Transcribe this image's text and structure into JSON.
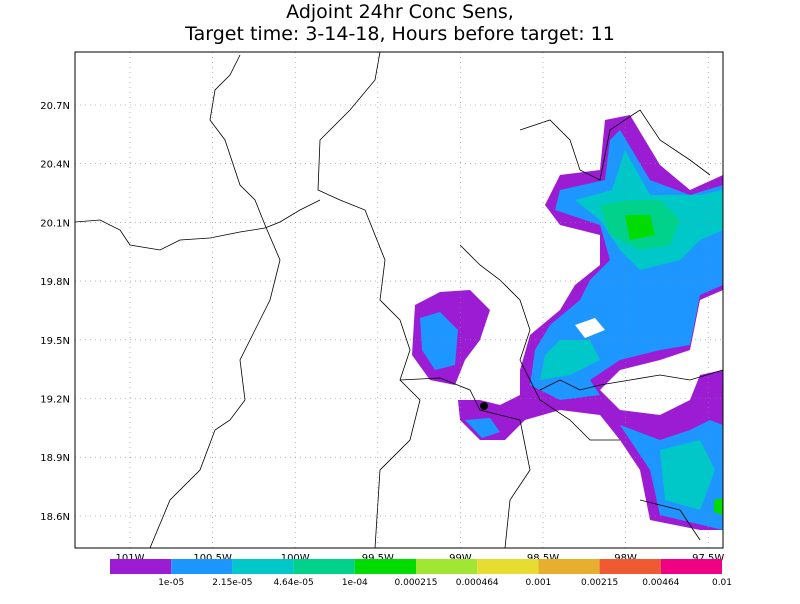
{
  "title": [
    "Adjoint 24hr Conc Sens,",
    "Target time: 3-14-18, Hours before target: 11"
  ],
  "map": {
    "y_labels": [
      "20.7N",
      "20.4N",
      "20.1N",
      "19.8N",
      "19.5N",
      "19.2N",
      "18.9N",
      "18.6N"
    ],
    "x_labels": [
      "101W",
      "100.5W",
      "100W",
      "99.5W",
      "99W",
      "98.5W",
      "98W",
      "97.5W"
    ]
  },
  "colorbar": {
    "labels": [
      "1e-05",
      "2.15e-05",
      "4.64e-05",
      "1e-04",
      "0.000215",
      "0.000464",
      "0.001",
      "0.00215",
      "0.00464",
      "0.01"
    ],
    "colors": [
      "#9b1cd2",
      "#1e96ff",
      "#00c8c8",
      "#00d28c",
      "#00dc00",
      "#a0e632",
      "#e6dc32",
      "#e6af2d",
      "#f05a32",
      "#f00082"
    ]
  }
}
